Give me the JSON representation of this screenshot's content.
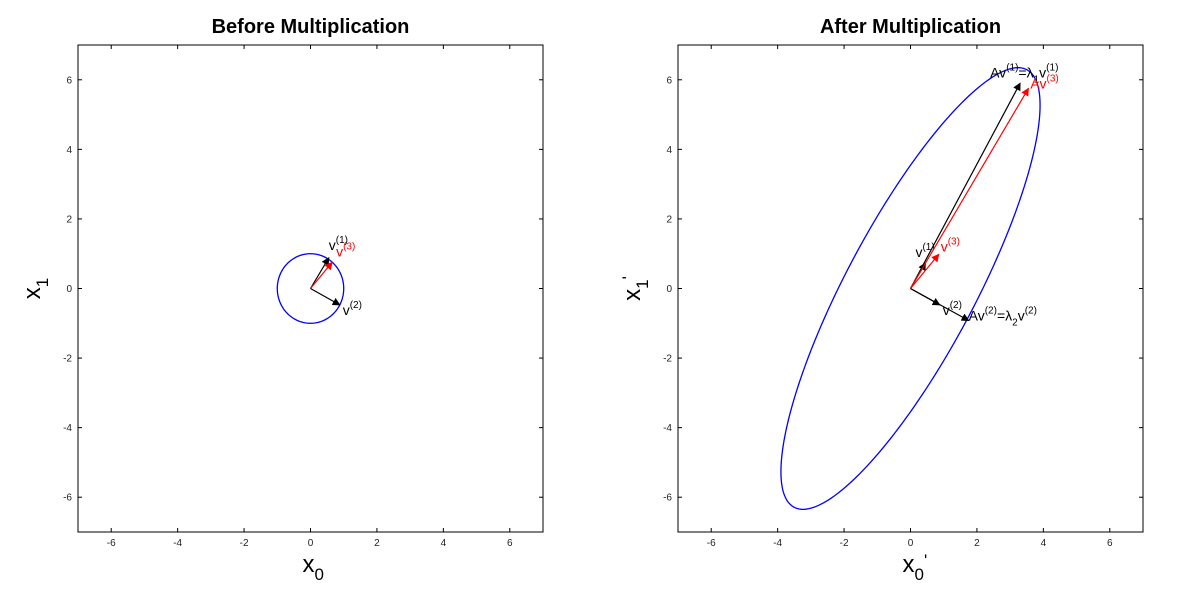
{
  "chart_data": [
    {
      "type": "scatter",
      "title": "Before Multiplication",
      "xlabel": {
        "base": "x",
        "sub": "0",
        "prime": ""
      },
      "ylabel": {
        "base": "x",
        "sub": "1",
        "prime": ""
      },
      "xlim": [
        -7,
        7
      ],
      "ylim": [
        -7,
        7
      ],
      "xticks": [
        -6,
        -4,
        -2,
        0,
        2,
        4,
        6
      ],
      "yticks": [
        -6,
        -4,
        -2,
        0,
        2,
        4,
        6
      ],
      "grid": false,
      "ellipse": {
        "color": "#0000ff",
        "center": [
          0,
          0
        ],
        "semi_major": 1,
        "semi_minor": 1,
        "angle_deg": 0
      },
      "vectors": [
        {
          "to": [
            0.55,
            0.88
          ],
          "color": "#000000",
          "label": {
            "base": "v",
            "sup": "(1)"
          }
        },
        {
          "to": [
            0.65,
            0.75
          ],
          "color": "#ff0000",
          "label": {
            "base": "v",
            "sup": "(3)"
          }
        },
        {
          "to": [
            0.88,
            -0.47
          ],
          "color": "#000000",
          "label": {
            "base": "v",
            "sup": "(2)"
          }
        }
      ]
    },
    {
      "type": "scatter",
      "title": "After Multiplication",
      "xlabel": {
        "base": "x",
        "sub": "0",
        "prime": "'"
      },
      "ylabel": {
        "base": "x",
        "sub": "1",
        "prime": "'"
      },
      "xlim": [
        -7,
        7
      ],
      "ylim": [
        -7,
        7
      ],
      "xticks": [
        -6,
        -4,
        -2,
        0,
        2,
        4,
        6
      ],
      "yticks": [
        -6,
        -4,
        -2,
        0,
        2,
        4,
        6
      ],
      "grid": false,
      "ellipse": {
        "color": "#0000ff",
        "center": [
          0,
          0
        ],
        "semi_major": 7.2,
        "semi_minor": 1.92,
        "angle_deg": 60.7
      },
      "vectors": [
        {
          "to": [
            0.45,
            0.73
          ],
          "color": "#000000",
          "label": {
            "base": "v",
            "sup": "(1)"
          }
        },
        {
          "to": [
            0.88,
            -0.47
          ],
          "color": "#000000",
          "label": {
            "base": "v",
            "sup": "(2)"
          }
        },
        {
          "to": [
            0.85,
            0.98
          ],
          "color": "#ff0000",
          "label": {
            "base": "v",
            "sup": "(3)"
          }
        },
        {
          "to": [
            3.3,
            5.9
          ],
          "color": "#000000",
          "label": {
            "base": "Av",
            "sup": "(1)",
            "rest": "=λ",
            "rest_sub": "1",
            "tail": "v",
            "tail_sup": "(1)"
          }
        },
        {
          "to": [
            1.75,
            -0.92
          ],
          "color": "#000000",
          "label": {
            "base": "Av",
            "sup": "(2)",
            "rest": "=λ",
            "rest_sub": "2",
            "tail": "v",
            "tail_sup": "(2)"
          }
        },
        {
          "to": [
            3.55,
            5.75
          ],
          "color": "#ff0000",
          "label": {
            "base": "Av",
            "sup": "(3)"
          }
        }
      ]
    }
  ]
}
